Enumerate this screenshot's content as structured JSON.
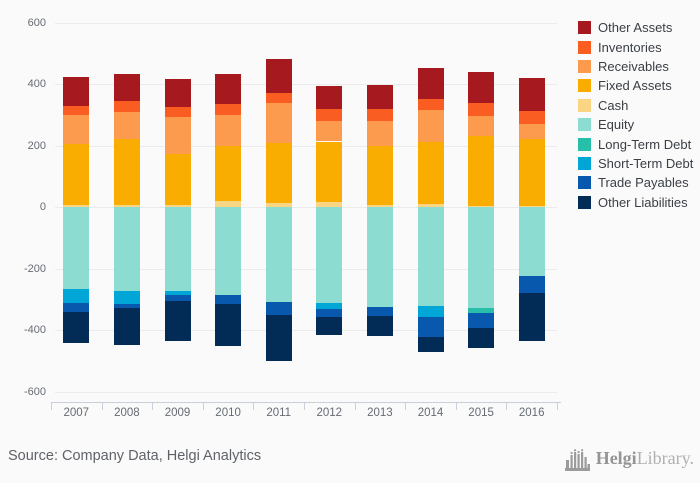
{
  "page": {
    "background": "#fafafa"
  },
  "chart_data": {
    "type": "bar",
    "stacked": true,
    "orientation": "vertical",
    "x": [
      "2007",
      "2008",
      "2009",
      "2010",
      "2011",
      "2012",
      "2013",
      "2014",
      "2015",
      "2016"
    ],
    "ylim": [
      -600,
      600
    ],
    "ytick_step": 200,
    "grid": "horizontal",
    "legend_position": "right",
    "note": "Assets stack upward from zero (Cash nearest zero, Other Assets on top); Equity and liabilities stack downward from zero (Equity nearest zero, Other Liabilities at bottom).",
    "series": [
      {
        "name": "Other Assets",
        "color": "#a6191f",
        "side": "positive",
        "values": [
          95,
          90,
          92,
          96,
          110,
          76,
          80,
          100,
          100,
          108
        ]
      },
      {
        "name": "Inventories",
        "color": "#f95d22",
        "side": "positive",
        "values": [
          27,
          34,
          31,
          35,
          32,
          39,
          38,
          36,
          43,
          41
        ]
      },
      {
        "name": "Receivables",
        "color": "#fc9a4e",
        "side": "positive",
        "values": [
          95,
          90,
          120,
          102,
          130,
          67,
          81,
          103,
          65,
          49
        ]
      },
      {
        "name": "Fixed Assets",
        "color": "#f8ad00",
        "side": "positive",
        "values": [
          200,
          214,
          167,
          178,
          195,
          197,
          193,
          204,
          227,
          219
        ]
      },
      {
        "name": "Cash",
        "color": "#fad584",
        "side": "positive",
        "values": [
          5,
          6,
          6,
          20,
          13,
          16,
          6,
          9,
          3,
          2
        ]
      },
      {
        "name": "Equity",
        "color": "#8cdcd2",
        "side": "negative",
        "values": [
          -267,
          -272,
          -273,
          -285,
          -309,
          -312,
          -325,
          -322,
          -330,
          -225
        ]
      },
      {
        "name": "Long-Term Debt",
        "color": "#28bfaa",
        "side": "negative",
        "values": [
          0,
          0,
          0,
          0,
          0,
          0,
          0,
          0,
          -14,
          0
        ]
      },
      {
        "name": "Short-Term Debt",
        "color": "#00a6d6",
        "side": "negative",
        "values": [
          -45,
          -44,
          -12,
          0,
          0,
          -20,
          0,
          -36,
          0,
          0
        ]
      },
      {
        "name": "Trade Payables",
        "color": "#0859ae",
        "side": "negative",
        "values": [
          -30,
          -14,
          -21,
          -31,
          -43,
          -25,
          -30,
          -65,
          -49,
          -56
        ]
      },
      {
        "name": "Other Liabilities",
        "color": "#022c55",
        "side": "negative",
        "values": [
          -100,
          -119,
          -131,
          -135,
          -148,
          -60,
          -64,
          -50,
          -65,
          -156
        ]
      }
    ]
  },
  "footer": {
    "source": "Source: Company Data, Helgi Analytics",
    "logo_bold": "Helgi",
    "logo_light": "Library.",
    "logo_color": "#9b9b9b"
  }
}
